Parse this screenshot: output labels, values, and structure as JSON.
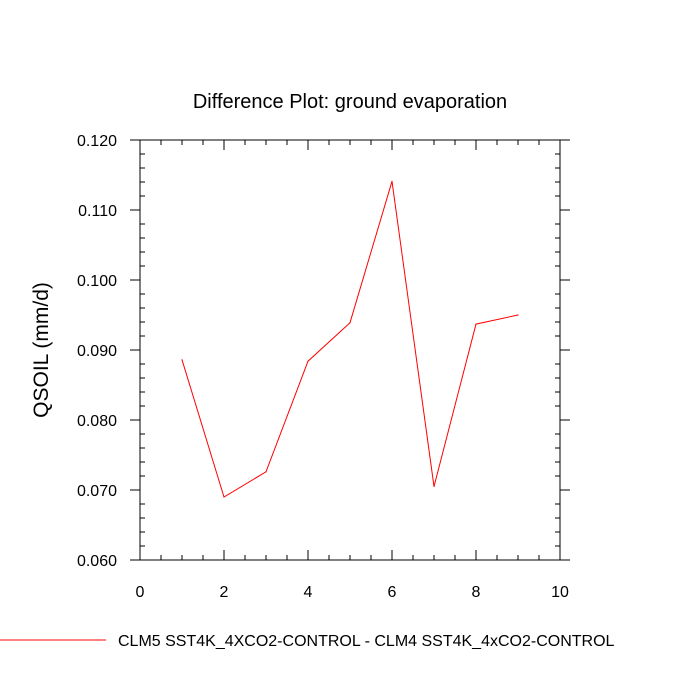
{
  "chart_data": {
    "type": "line",
    "title": "Difference Plot: ground evaporation",
    "xlabel": "",
    "ylabel": "QSOIL  (mm/d)",
    "xlim": [
      0,
      10
    ],
    "ylim": [
      0.06,
      0.12
    ],
    "x_ticks": [
      0,
      2,
      4,
      6,
      8,
      10
    ],
    "x_tick_labels": [
      "0",
      "2",
      "4",
      "6",
      "8",
      "10"
    ],
    "y_ticks": [
      0.06,
      0.07,
      0.08,
      0.09,
      0.1,
      0.11,
      0.12
    ],
    "y_tick_labels": [
      "0.060",
      "0.070",
      "0.080",
      "0.090",
      "0.100",
      "0.110",
      "0.120"
    ],
    "grid": false,
    "legend_position": "bottom",
    "series": [
      {
        "name": "CLM5 SST4K_4XCO2-CONTROL - CLM4 SST4K_4xCO2-CONTROL",
        "color": "#ff0000",
        "x": [
          1,
          2,
          3,
          4,
          5,
          6,
          7,
          8,
          9
        ],
        "values": [
          0.0886,
          0.069,
          0.0726,
          0.0884,
          0.0939,
          0.1141,
          0.0705,
          0.0937,
          0.095
        ]
      }
    ]
  }
}
